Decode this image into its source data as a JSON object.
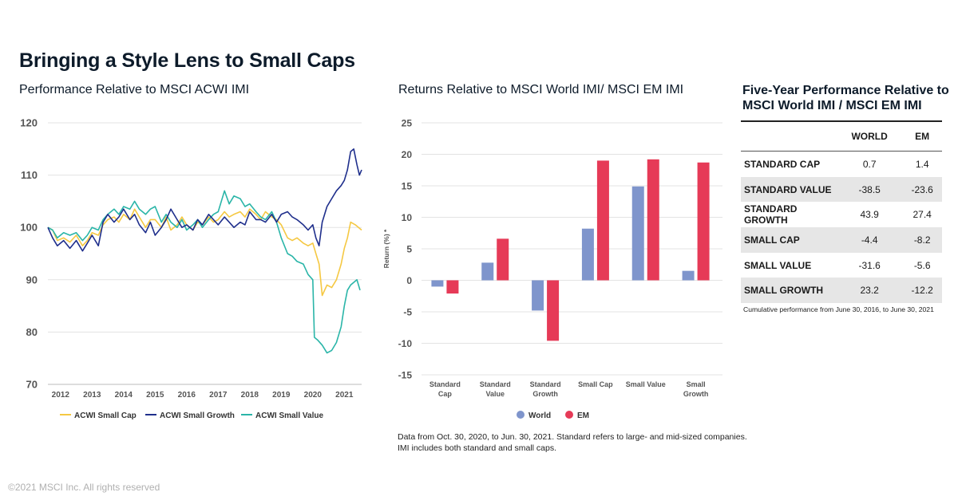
{
  "title": "Bringing a Style Lens to Small Caps",
  "copyright": "©2021 MSCI Inc. All rights reserved",
  "footnote": [
    "Data from Oct. 30, 2020, to Jun. 30, 2021. Standard refers to large- and mid-sized companies.",
    "IMI includes both standard and small caps."
  ],
  "colors": {
    "small_cap": "#f5c842",
    "small_growth": "#1f2f8c",
    "small_value": "#2ab5a8",
    "world": "#7f95cc",
    "em": "#e63a57",
    "grid": "#e3e3e3",
    "axis_text": "#555555"
  },
  "chart_data": [
    {
      "type": "line",
      "title": "Performance Relative to MSCI ACWI IMI",
      "xlabel": "",
      "ylabel": "",
      "xlim": [
        2011.6,
        2021.55
      ],
      "ylim": [
        70,
        120
      ],
      "x_ticks": [
        "2012",
        "2013",
        "2014",
        "2015",
        "2016",
        "2017",
        "2018",
        "2019",
        "2020",
        "2021"
      ],
      "y_ticks": [
        "70",
        "80",
        "90",
        "100",
        "110",
        "120"
      ],
      "legend": [
        "ACWI Small Cap",
        "ACWI Small Growth",
        "ACWI Small Value"
      ],
      "series": [
        {
          "name": "ACWI Small Cap",
          "x": [
            2011.6,
            2011.75,
            2011.9,
            2012.1,
            2012.3,
            2012.5,
            2012.7,
            2012.85,
            2013.0,
            2013.2,
            2013.35,
            2013.5,
            2013.7,
            2013.85,
            2014.0,
            2014.2,
            2014.35,
            2014.5,
            2014.7,
            2014.85,
            2015.0,
            2015.2,
            2015.35,
            2015.5,
            2015.7,
            2015.85,
            2016.0,
            2016.2,
            2016.35,
            2016.5,
            2016.7,
            2016.85,
            2017.0,
            2017.2,
            2017.35,
            2017.5,
            2017.7,
            2017.85,
            2018.0,
            2018.2,
            2018.35,
            2018.5,
            2018.7,
            2018.85,
            2019.0,
            2019.2,
            2019.35,
            2019.5,
            2019.7,
            2019.85,
            2020.0,
            2020.1,
            2020.2,
            2020.3,
            2020.45,
            2020.6,
            2020.75,
            2020.9,
            2021.0,
            2021.1,
            2021.2,
            2021.35,
            2021.45,
            2021.55
          ],
          "values": [
            100,
            99.5,
            97.5,
            98,
            97.2,
            98.5,
            96.5,
            97.5,
            99,
            98.5,
            100.5,
            101.5,
            102,
            101,
            102.5,
            101.5,
            103.5,
            102,
            100,
            101.5,
            101.5,
            100,
            102,
            99.5,
            100.5,
            102,
            100.5,
            99.5,
            101,
            100.5,
            102,
            101,
            101.5,
            103,
            102,
            102.5,
            103,
            102,
            103.5,
            102.5,
            101.5,
            103,
            102,
            101.5,
            100.5,
            98,
            97.5,
            98,
            97,
            96.5,
            97,
            95,
            93,
            87,
            89,
            88.5,
            90,
            93,
            96,
            98,
            101,
            100.5,
            100,
            99.5
          ]
        },
        {
          "name": "ACWI Small Growth",
          "x": [
            2011.6,
            2011.75,
            2011.9,
            2012.1,
            2012.3,
            2012.5,
            2012.7,
            2012.85,
            2013.0,
            2013.2,
            2013.35,
            2013.5,
            2013.7,
            2013.85,
            2014.0,
            2014.2,
            2014.35,
            2014.5,
            2014.7,
            2014.85,
            2015.0,
            2015.2,
            2015.35,
            2015.5,
            2015.7,
            2015.85,
            2016.0,
            2016.2,
            2016.35,
            2016.5,
            2016.7,
            2016.85,
            2017.0,
            2017.2,
            2017.35,
            2017.5,
            2017.7,
            2017.85,
            2018.0,
            2018.2,
            2018.35,
            2018.5,
            2018.7,
            2018.85,
            2019.0,
            2019.2,
            2019.35,
            2019.5,
            2019.7,
            2019.85,
            2020.0,
            2020.1,
            2020.2,
            2020.3,
            2020.45,
            2020.6,
            2020.75,
            2020.9,
            2021.0,
            2021.1,
            2021.2,
            2021.3,
            2021.4,
            2021.48,
            2021.55
          ],
          "values": [
            100,
            98,
            96.5,
            97.5,
            96,
            97.5,
            95.5,
            97,
            98.5,
            96.5,
            101,
            102.5,
            101,
            102,
            103.5,
            101.5,
            102.5,
            100.5,
            99,
            101,
            98.5,
            100,
            101.5,
            103.5,
            101.5,
            100,
            100.5,
            99.5,
            101.5,
            100.5,
            102.5,
            101.5,
            100.5,
            102,
            101,
            100,
            101,
            100.5,
            103,
            101.5,
            101.5,
            101,
            102.5,
            101,
            102.5,
            103,
            102,
            101.5,
            100.5,
            99.5,
            100.5,
            98,
            96.5,
            101,
            104,
            105.5,
            107,
            108,
            109,
            111,
            114.5,
            115,
            112,
            110,
            111
          ]
        },
        {
          "name": "ACWI Small Value",
          "x": [
            2011.6,
            2011.75,
            2011.9,
            2012.1,
            2012.3,
            2012.5,
            2012.7,
            2012.85,
            2013.0,
            2013.2,
            2013.35,
            2013.5,
            2013.7,
            2013.85,
            2014.0,
            2014.2,
            2014.35,
            2014.5,
            2014.7,
            2014.85,
            2015.0,
            2015.2,
            2015.35,
            2015.5,
            2015.7,
            2015.85,
            2016.0,
            2016.2,
            2016.35,
            2016.5,
            2016.7,
            2016.85,
            2017.0,
            2017.2,
            2017.35,
            2017.5,
            2017.7,
            2017.85,
            2018.0,
            2018.2,
            2018.35,
            2018.5,
            2018.7,
            2018.85,
            2019.0,
            2019.2,
            2019.35,
            2019.5,
            2019.7,
            2019.85,
            2020.0,
            2020.05,
            2020.15,
            2020.3,
            2020.45,
            2020.6,
            2020.75,
            2020.9,
            2021.0,
            2021.1,
            2021.2,
            2021.3,
            2021.4,
            2021.5
          ],
          "values": [
            100,
            99.5,
            98,
            99,
            98.5,
            99,
            97.5,
            98.5,
            100,
            99.5,
            101.5,
            102.5,
            103.5,
            102.5,
            104,
            103.5,
            105,
            103.5,
            102.5,
            103.5,
            104,
            101,
            102.5,
            101,
            100,
            101.5,
            99.5,
            100.5,
            101.5,
            100,
            101.5,
            102.5,
            103,
            107,
            104.5,
            106,
            105.5,
            104,
            104.5,
            103,
            102,
            101.5,
            103,
            101,
            98,
            95,
            94.5,
            93.5,
            93,
            91,
            90,
            79,
            78.5,
            77.5,
            76,
            76.5,
            78,
            81,
            85,
            88,
            89,
            89.5,
            90,
            88
          ]
        }
      ]
    },
    {
      "type": "bar",
      "title": "Returns Relative to MSCI World IMI/ MSCI EM IMI",
      "xlabel": "",
      "ylabel": "Return (%) *",
      "ylim": [
        -15,
        25
      ],
      "y_ticks": [
        "25",
        "20",
        "15",
        "10",
        "5",
        "0",
        "-5",
        "-10",
        "-15"
      ],
      "categories": [
        [
          "Standard",
          "Cap"
        ],
        [
          "Standard",
          "Value"
        ],
        [
          "Standard",
          "Growth"
        ],
        [
          "Small Cap"
        ],
        [
          "Small Value"
        ],
        [
          "Small",
          "Growth"
        ]
      ],
      "legend": [
        "World",
        "EM"
      ],
      "series": [
        {
          "name": "World",
          "values": [
            -1,
            2.8,
            -4.8,
            8.2,
            14.9,
            1.5
          ]
        },
        {
          "name": "EM",
          "values": [
            -2.1,
            6.6,
            -9.6,
            19.0,
            19.2,
            18.7
          ]
        }
      ]
    },
    {
      "type": "table",
      "title": "Five-Year Performance Relative to MSCI World IMI / MSCI EM IMI",
      "columns": [
        "",
        "WORLD",
        "EM"
      ],
      "rows": [
        {
          "label": "STANDARD CAP",
          "world": "0.7",
          "em": "1.4"
        },
        {
          "label": "STANDARD VALUE",
          "world": "-38.5",
          "em": "-23.6"
        },
        {
          "label": "STANDARD GROWTH",
          "world": "43.9",
          "em": "27.4"
        },
        {
          "label": "SMALL CAP",
          "world": "-4.4",
          "em": "-8.2"
        },
        {
          "label": "SMALL VALUE",
          "world": "-31.6",
          "em": "-5.6"
        },
        {
          "label": "SMALL GROWTH",
          "world": "23.2",
          "em": "-12.2"
        }
      ],
      "note": "Cumulative performance from June 30, 2016, to June 30, 2021"
    }
  ]
}
